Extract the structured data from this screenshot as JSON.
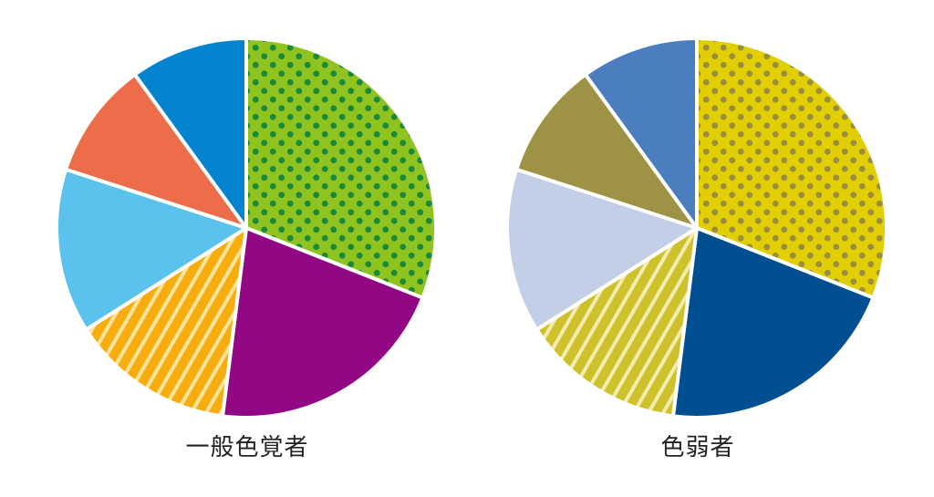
{
  "chart_data": [
    {
      "type": "pie",
      "title": "一般色覚者",
      "start_angle_deg": 0,
      "direction": "clockwise",
      "slices": [
        {
          "value": 31,
          "color": "#8fc31f",
          "pattern": "dots",
          "pattern_color": "#1a8a3a"
        },
        {
          "value": 21,
          "color": "#920783",
          "pattern": "none"
        },
        {
          "value": 14,
          "color": "#f6ad0d",
          "pattern": "stripes",
          "pattern_color": "#fde5a0"
        },
        {
          "value": 14,
          "color": "#5bc2ee",
          "pattern": "none"
        },
        {
          "value": 10,
          "color": "#ed6c4a",
          "pattern": "none"
        },
        {
          "value": 10,
          "color": "#0483cf",
          "pattern": "none"
        }
      ]
    },
    {
      "type": "pie",
      "title": "色弱者",
      "start_angle_deg": 0,
      "direction": "clockwise",
      "slices": [
        {
          "value": 31,
          "color": "#e1cf03",
          "pattern": "dots",
          "pattern_color": "#9a8d3e"
        },
        {
          "value": 21,
          "color": "#004f91",
          "pattern": "none"
        },
        {
          "value": 14,
          "color": "#cfc12b",
          "pattern": "stripes",
          "pattern_color": "#f3ecb0"
        },
        {
          "value": 14,
          "color": "#c3cfe6",
          "pattern": "none"
        },
        {
          "value": 10,
          "color": "#9e9344",
          "pattern": "none"
        },
        {
          "value": 10,
          "color": "#4b7ebf",
          "pattern": "none"
        }
      ]
    }
  ]
}
